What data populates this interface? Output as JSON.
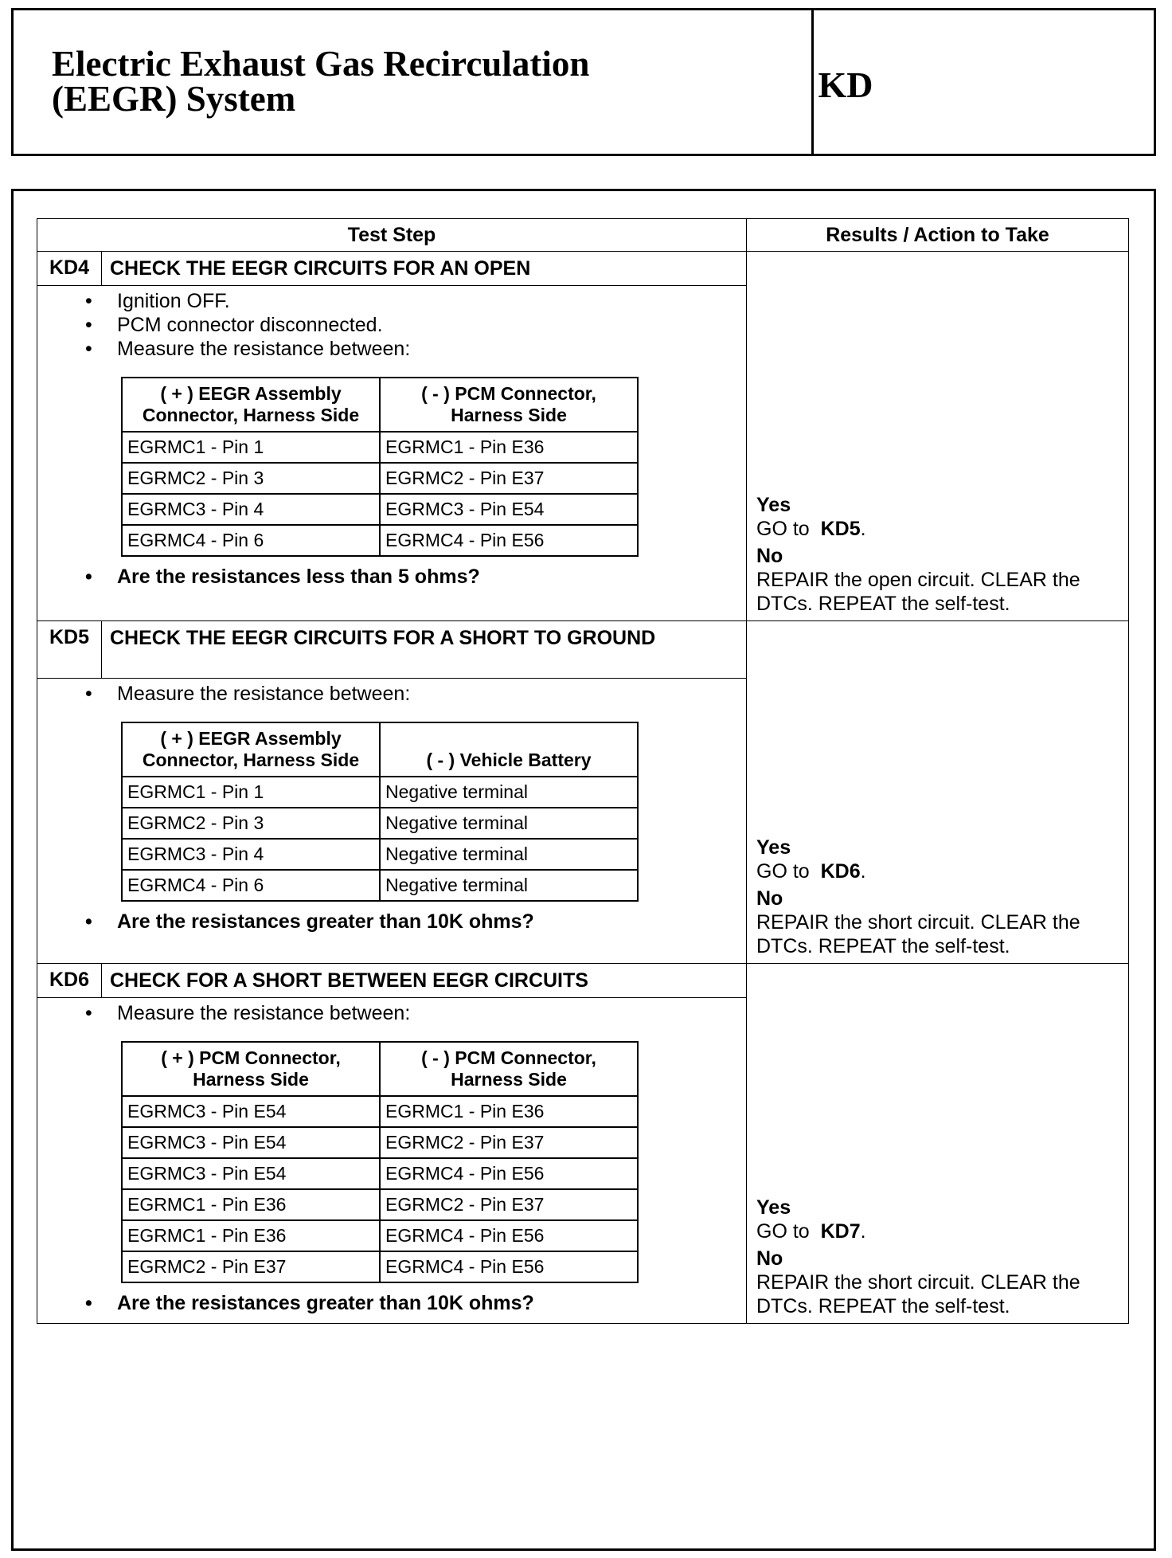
{
  "header": {
    "title_line1": "Electric Exhaust Gas Recirculation",
    "title_line2": "(EEGR) System",
    "code": "KD"
  },
  "table": {
    "col_test_step": "Test Step",
    "col_results": "Results / Action to Take"
  },
  "steps": [
    {
      "code": "KD4",
      "title": "CHECK THE EEGR CIRCUITS FOR AN OPEN",
      "bullets": [
        "Ignition OFF.",
        "PCM connector disconnected.",
        "Measure the resistance between:"
      ],
      "sub_headers": [
        "( + ) EEGR Assembly Connector, Harness Side",
        "( - ) PCM Connector, Harness Side"
      ],
      "rows": [
        [
          "EGRMC1 - Pin 1",
          "EGRMC1 - Pin E36"
        ],
        [
          "EGRMC2 - Pin 3",
          "EGRMC2 - Pin E37"
        ],
        [
          "EGRMC3 - Pin 4",
          "EGRMC3 - Pin E54"
        ],
        [
          "EGRMC4 - Pin 6",
          "EGRMC4 - Pin E56"
        ]
      ],
      "question": "Are the resistances less than 5 ohms?",
      "yes": "Yes",
      "yes_text": "GO to",
      "yes_ref": "KD5",
      "no": "No",
      "no_text": "REPAIR the open circuit. CLEAR the DTCs. REPEAT the self-test."
    },
    {
      "code": "KD5",
      "title": "CHECK THE EEGR CIRCUITS FOR A SHORT TO GROUND",
      "bullets": [
        "Measure the resistance between:"
      ],
      "sub_headers": [
        "( + ) EEGR Assembly Connector, Harness Side",
        "( - ) Vehicle Battery"
      ],
      "rows": [
        [
          "EGRMC1 - Pin 1",
          "Negative terminal"
        ],
        [
          "EGRMC2 - Pin 3",
          "Negative terminal"
        ],
        [
          "EGRMC3 - Pin 4",
          "Negative terminal"
        ],
        [
          "EGRMC4 - Pin 6",
          "Negative terminal"
        ]
      ],
      "question": "Are the resistances greater than 10K ohms?",
      "yes": "Yes",
      "yes_text": "GO to",
      "yes_ref": "KD6",
      "no": "No",
      "no_text": "REPAIR the short circuit. CLEAR the DTCs. REPEAT the self-test."
    },
    {
      "code": "KD6",
      "title": "CHECK FOR A SHORT BETWEEN EEGR CIRCUITS",
      "bullets": [
        "Measure the resistance between:"
      ],
      "sub_headers": [
        "( + ) PCM Connector, Harness Side",
        "( - ) PCM Connector, Harness Side"
      ],
      "rows": [
        [
          "EGRMC3 - Pin E54",
          "EGRMC1 - Pin E36"
        ],
        [
          "EGRMC3 - Pin E54",
          "EGRMC2 - Pin E37"
        ],
        [
          "EGRMC3 - Pin E54",
          "EGRMC4 - Pin E56"
        ],
        [
          "EGRMC1 - Pin E36",
          "EGRMC2 - Pin E37"
        ],
        [
          "EGRMC1 - Pin E36",
          "EGRMC4 - Pin E56"
        ],
        [
          "EGRMC2 - Pin E37",
          "EGRMC4 - Pin E56"
        ]
      ],
      "question": "Are the resistances greater than 10K ohms?",
      "yes": "Yes",
      "yes_text": "GO to",
      "yes_ref": "KD7",
      "no": "No",
      "no_text": "REPAIR the short circuit. CLEAR the DTCs. REPEAT the self-test."
    }
  ]
}
